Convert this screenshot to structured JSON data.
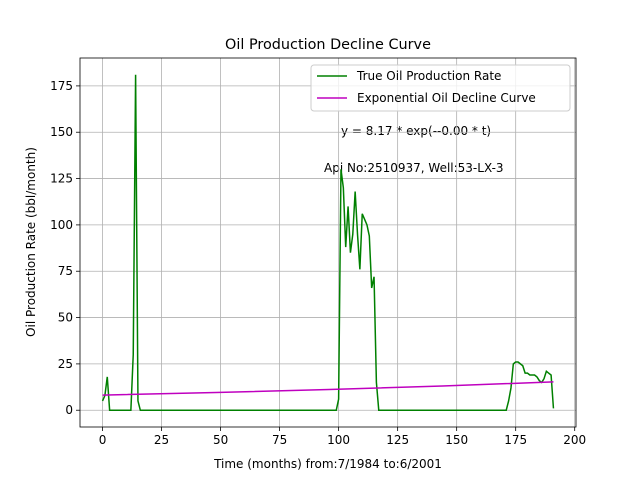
{
  "chart_data": {
    "type": "line",
    "title": "Oil Production Decline Curve",
    "x_label": "Time (months) from:7/1984 to:6/2001",
    "y_label": "Oil Production Rate (bbl/month)",
    "annotations": [
      "y = 8.17 * exp(--0.00 * t)",
      "Api No:2510937, Well:53-LX-3"
    ],
    "xlim": [
      -9.55,
      200.55
    ],
    "ylim": [
      -9.05,
      190.05
    ],
    "xticks": [
      0,
      25,
      50,
      75,
      100,
      125,
      150,
      175,
      200
    ],
    "yticks": [
      0,
      25,
      50,
      75,
      100,
      125,
      150,
      175
    ],
    "grid": true,
    "legend": "upper right",
    "series": [
      {
        "name": "True Oil Production Rate",
        "color": "#008000",
        "x": [
          0,
          1,
          2,
          3,
          4,
          5,
          6,
          7,
          8,
          9,
          10,
          11,
          12,
          13,
          14,
          15,
          16,
          17,
          18,
          19,
          20,
          21,
          22,
          23,
          24,
          25,
          26,
          27,
          28,
          29,
          30,
          31,
          32,
          33,
          34,
          35,
          36,
          37,
          38,
          39,
          40,
          41,
          42,
          43,
          44,
          45,
          46,
          47,
          48,
          49,
          50,
          51,
          52,
          53,
          54,
          55,
          56,
          57,
          58,
          59,
          60,
          61,
          62,
          63,
          64,
          65,
          66,
          67,
          68,
          69,
          70,
          71,
          72,
          73,
          74,
          75,
          76,
          77,
          78,
          79,
          80,
          81,
          82,
          83,
          84,
          85,
          86,
          87,
          88,
          89,
          90,
          91,
          92,
          93,
          94,
          95,
          96,
          97,
          98,
          99,
          100,
          101,
          102,
          103,
          104,
          105,
          106,
          107,
          108,
          109,
          110,
          111,
          112,
          113,
          114,
          115,
          116,
          117,
          118,
          119,
          120,
          121,
          122,
          123,
          124,
          125,
          126,
          127,
          128,
          129,
          130,
          131,
          132,
          133,
          134,
          135,
          136,
          137,
          138,
          139,
          140,
          141,
          142,
          143,
          144,
          145,
          146,
          147,
          148,
          149,
          150,
          151,
          152,
          153,
          154,
          155,
          156,
          157,
          158,
          159,
          160,
          161,
          162,
          163,
          164,
          165,
          166,
          167,
          168,
          169,
          170,
          171,
          172,
          173,
          174,
          175,
          176,
          177,
          178,
          179,
          180,
          181,
          182,
          183,
          184,
          185,
          186,
          187,
          188,
          189,
          190,
          191
        ],
        "values": [
          5,
          8,
          18,
          0,
          0,
          0,
          0,
          0,
          0,
          0,
          0,
          0,
          0,
          30,
          181,
          5,
          0,
          0,
          0,
          0,
          0,
          0,
          0,
          0,
          0,
          0,
          0,
          0,
          0,
          0,
          0,
          0,
          0,
          0,
          0,
          0,
          0,
          0,
          0,
          0,
          0,
          0,
          0,
          0,
          0,
          0,
          0,
          0,
          0,
          0,
          0,
          0,
          0,
          0,
          0,
          0,
          0,
          0,
          0,
          0,
          0,
          0,
          0,
          0,
          0,
          0,
          0,
          0,
          0,
          0,
          0,
          0,
          0,
          0,
          0,
          0,
          0,
          0,
          0,
          0,
          0,
          0,
          0,
          0,
          0,
          0,
          0,
          0,
          0,
          0,
          0,
          0,
          0,
          0,
          0,
          0,
          0,
          0,
          0,
          0,
          6,
          130,
          120,
          88,
          110,
          85,
          95,
          118,
          95,
          76,
          106,
          103,
          100,
          94,
          66,
          72,
          15,
          0,
          0,
          0,
          0,
          0,
          0,
          0,
          0,
          0,
          0,
          0,
          0,
          0,
          0,
          0,
          0,
          0,
          0,
          0,
          0,
          0,
          0,
          0,
          0,
          0,
          0,
          0,
          0,
          0,
          0,
          0,
          0,
          0,
          0,
          0,
          0,
          0,
          0,
          0,
          0,
          0,
          0,
          0,
          0,
          0,
          0,
          0,
          0,
          0,
          0,
          0,
          0,
          0,
          0,
          0,
          5,
          12,
          25,
          26,
          26,
          25,
          24,
          20,
          20,
          19,
          19,
          19,
          18,
          16,
          15,
          17,
          21,
          20,
          19,
          1
        ]
      },
      {
        "name": "Exponential Oil Decline Curve",
        "color": "#bf00bf",
        "x": [
          0,
          48,
          96,
          144,
          191
        ],
        "values": [
          8.17,
          9.55,
          11.18,
          13.07,
          15.28
        ]
      }
    ]
  }
}
